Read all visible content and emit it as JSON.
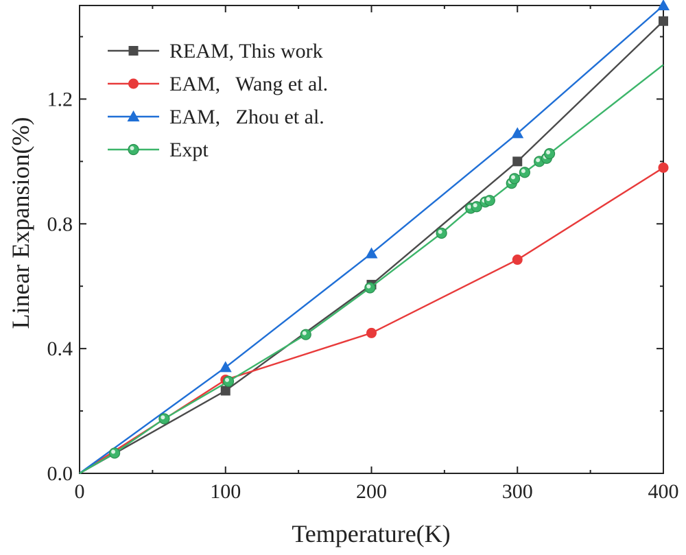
{
  "chart_data": {
    "type": "line",
    "title": "",
    "xlabel": "Temperature(K)",
    "ylabel": "Linear Expansion(%)",
    "xlim": [
      0,
      400
    ],
    "ylim": [
      0,
      1.5
    ],
    "xticks": [
      0,
      100,
      200,
      300,
      400
    ],
    "yticks": [
      0.0,
      0.4,
      0.8,
      1.2
    ],
    "x_tick_labels": [
      "0",
      "100",
      "200",
      "300",
      "400"
    ],
    "y_tick_labels": [
      "0.0",
      "0.4",
      "0.8",
      "1.2"
    ],
    "grid": false,
    "legend_position": "top-left",
    "series": [
      {
        "name": "REAM, This work",
        "color": "#4a4a4a",
        "marker": "square",
        "x": [
          0,
          100,
          200,
          300,
          400
        ],
        "y": [
          0.0,
          0.265,
          0.605,
          1.0,
          1.45
        ]
      },
      {
        "name": "EAM,   Wang et al.",
        "color": "#e83a3a",
        "marker": "circle",
        "x": [
          0,
          100,
          200,
          300,
          400
        ],
        "y": [
          0.0,
          0.3,
          0.45,
          0.685,
          0.98
        ]
      },
      {
        "name": "EAM,   Zhou et al.",
        "color": "#1f6fd6",
        "marker": "triangle",
        "x": [
          0,
          100,
          200,
          300,
          400
        ],
        "y": [
          0.0,
          0.34,
          0.705,
          1.09,
          1.5
        ]
      },
      {
        "name": "Expt",
        "color": "#3cb56a",
        "marker": "circle-open",
        "x": [
          24,
          58,
          102,
          155,
          199,
          248,
          268,
          272,
          278,
          281,
          296,
          298,
          305,
          315,
          320,
          322
        ],
        "y": [
          0.065,
          0.175,
          0.295,
          0.445,
          0.595,
          0.77,
          0.85,
          0.855,
          0.87,
          0.875,
          0.93,
          0.945,
          0.965,
          1.0,
          1.01,
          1.025
        ],
        "line_x": [
          0,
          24,
          58,
          102,
          155,
          199,
          248,
          268,
          272,
          278,
          281,
          296,
          298,
          305,
          315,
          320,
          322,
          400
        ],
        "line_y": [
          0.0,
          0.065,
          0.175,
          0.295,
          0.445,
          0.595,
          0.77,
          0.85,
          0.855,
          0.87,
          0.875,
          0.93,
          0.945,
          0.965,
          1.0,
          1.01,
          1.025,
          1.31
        ]
      }
    ]
  }
}
